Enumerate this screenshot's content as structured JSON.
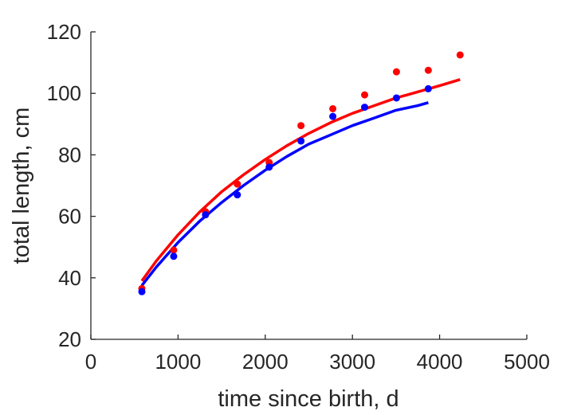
{
  "chart_data": {
    "type": "scatter",
    "title": "",
    "xlabel": "time since birth, d",
    "ylabel": "total length, cm",
    "xlim": [
      0,
      5000
    ],
    "ylim": [
      20,
      120
    ],
    "xticks": [
      "0",
      "1000",
      "2000",
      "3000",
      "4000",
      "5000"
    ],
    "yticks": [
      "20",
      "40",
      "60",
      "80",
      "100",
      "120"
    ],
    "grid": false,
    "legend": "none",
    "series": [
      {
        "color": "#ff0000",
        "points": [
          {
            "x": 585,
            "y": 36.5
          },
          {
            "x": 950,
            "y": 49
          },
          {
            "x": 1315,
            "y": 61.5
          },
          {
            "x": 1680,
            "y": 70.5
          },
          {
            "x": 2045,
            "y": 77.5
          },
          {
            "x": 2410,
            "y": 89.5
          },
          {
            "x": 2775,
            "y": 95
          },
          {
            "x": 3140,
            "y": 99.5
          },
          {
            "x": 3505,
            "y": 107
          },
          {
            "x": 3870,
            "y": 107.5
          },
          {
            "x": 4235,
            "y": 112.5
          }
        ],
        "curve": [
          {
            "x": 585,
            "y": 39
          },
          {
            "x": 750,
            "y": 45.5
          },
          {
            "x": 1000,
            "y": 54
          },
          {
            "x": 1250,
            "y": 61.5
          },
          {
            "x": 1500,
            "y": 68
          },
          {
            "x": 1750,
            "y": 73.5
          },
          {
            "x": 2000,
            "y": 78.5
          },
          {
            "x": 2250,
            "y": 83
          },
          {
            "x": 2500,
            "y": 87
          },
          {
            "x": 2750,
            "y": 90.5
          },
          {
            "x": 3000,
            "y": 93.5
          },
          {
            "x": 3250,
            "y": 96
          },
          {
            "x": 3500,
            "y": 98.5
          },
          {
            "x": 3750,
            "y": 100.5
          },
          {
            "x": 4000,
            "y": 102.5
          },
          {
            "x": 4235,
            "y": 104.5
          }
        ]
      },
      {
        "color": "#0000ff",
        "points": [
          {
            "x": 585,
            "y": 35.5
          },
          {
            "x": 950,
            "y": 47
          },
          {
            "x": 1315,
            "y": 60.5
          },
          {
            "x": 1680,
            "y": 67
          },
          {
            "x": 2045,
            "y": 76
          },
          {
            "x": 2410,
            "y": 84.5
          },
          {
            "x": 2775,
            "y": 92.5
          },
          {
            "x": 3140,
            "y": 95.5
          },
          {
            "x": 3505,
            "y": 98.5
          },
          {
            "x": 3870,
            "y": 101.5
          }
        ],
        "curve": [
          {
            "x": 585,
            "y": 37.5
          },
          {
            "x": 750,
            "y": 43.5
          },
          {
            "x": 1000,
            "y": 51.5
          },
          {
            "x": 1250,
            "y": 58.5
          },
          {
            "x": 1500,
            "y": 64.5
          },
          {
            "x": 1750,
            "y": 70
          },
          {
            "x": 2000,
            "y": 75
          },
          {
            "x": 2250,
            "y": 79.5
          },
          {
            "x": 2500,
            "y": 83.5
          },
          {
            "x": 2750,
            "y": 86.5
          },
          {
            "x": 3000,
            "y": 89.5
          },
          {
            "x": 3250,
            "y": 92
          },
          {
            "x": 3500,
            "y": 94.5
          },
          {
            "x": 3750,
            "y": 96
          },
          {
            "x": 3870,
            "y": 97
          }
        ]
      }
    ]
  }
}
